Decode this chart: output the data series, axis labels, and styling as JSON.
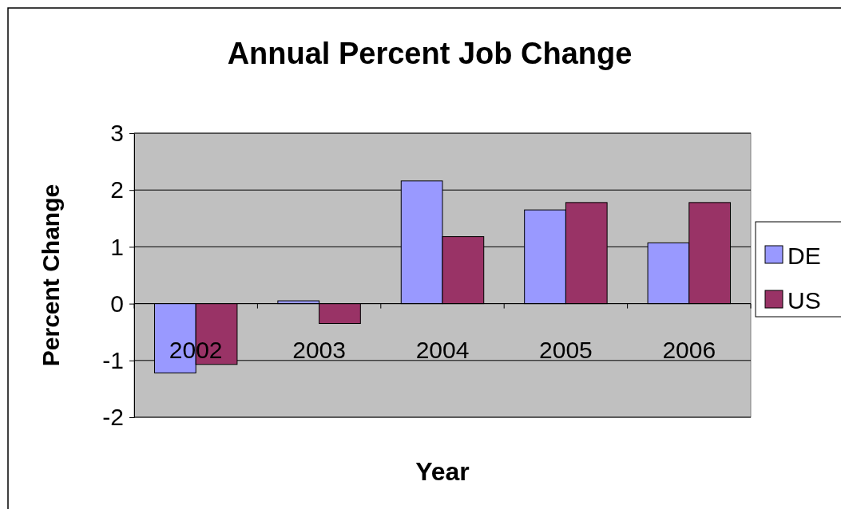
{
  "chart_data": {
    "type": "bar",
    "title": "Annual Percent Job Change",
    "xlabel": "Year",
    "ylabel": "Percent Change",
    "categories": [
      "2002",
      "2003",
      "2004",
      "2005",
      "2006"
    ],
    "series": [
      {
        "name": "DE",
        "color": "#9999ff",
        "values": [
          -1.22,
          0.05,
          2.16,
          1.65,
          1.07
        ]
      },
      {
        "name": "US",
        "color": "#993366",
        "values": [
          -1.07,
          -0.35,
          1.18,
          1.78,
          1.78
        ]
      }
    ],
    "ylim": [
      -2,
      3
    ],
    "yticks": [
      -2,
      -1,
      0,
      1,
      2,
      3
    ],
    "grid": "y",
    "legend": "right"
  }
}
